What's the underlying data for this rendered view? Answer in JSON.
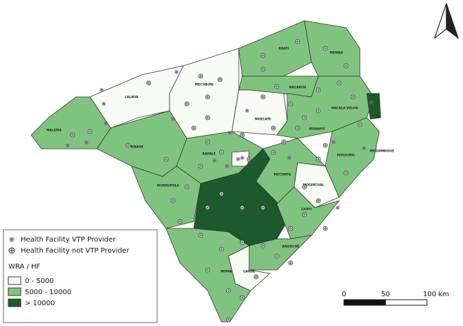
{
  "districts": [
    "LALAUA",
    "MECUBURI",
    "MALEMA",
    "RIBAUE",
    "ERATI",
    "MEMBA",
    "NACAROA",
    "MUECATE",
    "NACALA VELHA",
    "MONAPO",
    "MOSSURIL",
    "MOZAMBIQUE",
    "RAPALE",
    "MURRUPULA",
    "MECONTA",
    "MOGINCUAL",
    "LIUPO",
    "ANGOCHE",
    "MOMA",
    "LARDE"
  ],
  "legend": {
    "symbols": [
      "Health Facility VTP Provider",
      "Health Facility not VTP Provider"
    ],
    "title": "WRA / HF",
    "classes": [
      "0 - 5000",
      "5000 - 10000",
      "> 10000"
    ]
  },
  "scale_bar": [
    "0",
    "50",
    "100 km"
  ]
}
